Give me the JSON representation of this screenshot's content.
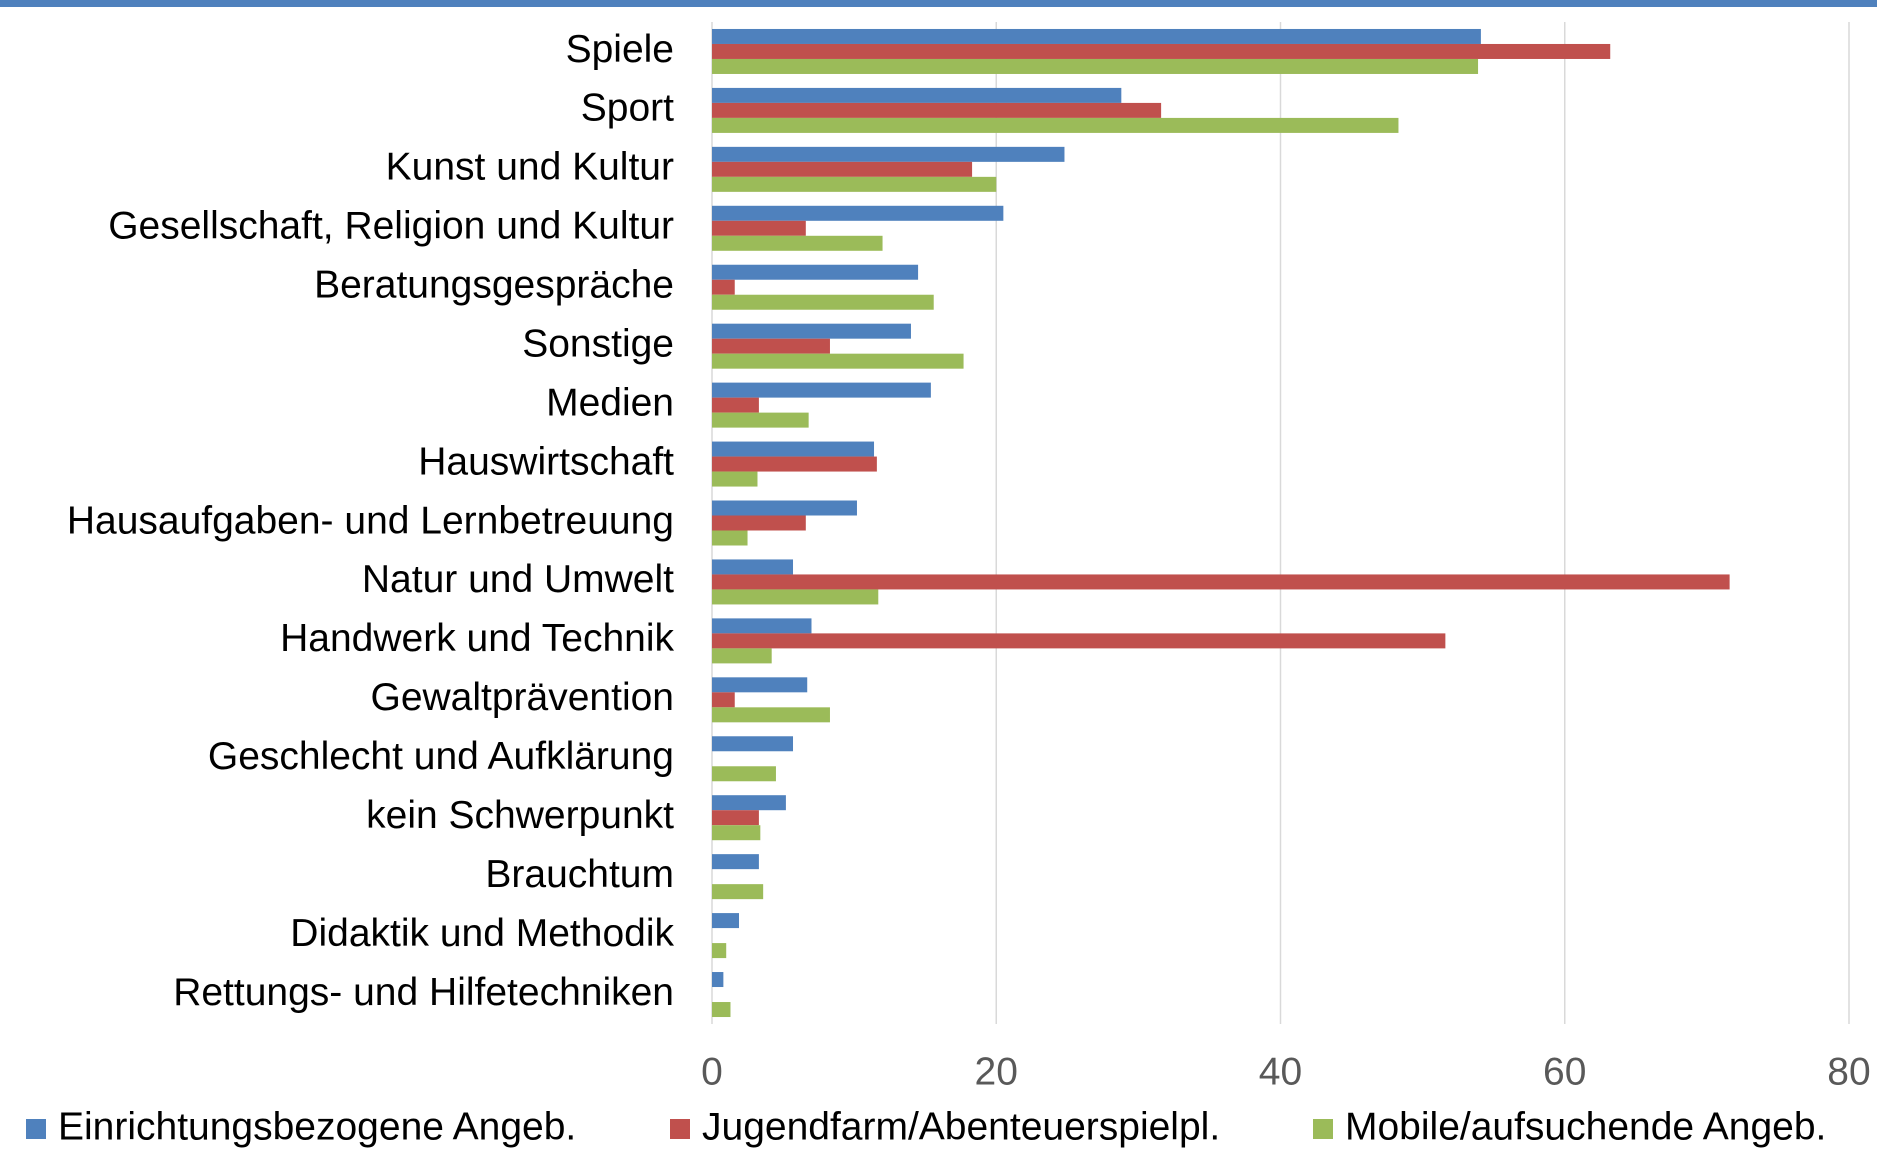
{
  "chart_data": {
    "type": "bar",
    "orientation": "horizontal",
    "categories": [
      "Spiele",
      "Sport",
      "Kunst und Kultur",
      "Gesellschaft, Religion und Kultur",
      "Beratungsgespräche",
      "Sonstige",
      "Medien",
      "Hauswirtschaft",
      "Hausaufgaben- und Lernbetreuung",
      "Natur und Umwelt",
      "Handwerk und Technik",
      "Gewaltprävention",
      "Geschlecht und Aufklärung",
      "kein Schwerpunkt",
      "Brauchtum",
      "Didaktik und Methodik",
      "Rettungs- und Hilfetechniken"
    ],
    "series": [
      {
        "name": "Einrichtungsbezogene Angeb.",
        "color": "#4f81bd",
        "values": [
          54.1,
          28.8,
          24.8,
          20.5,
          14.5,
          14.0,
          15.4,
          11.4,
          10.2,
          5.7,
          7.0,
          6.7,
          5.7,
          5.2,
          3.3,
          1.9,
          0.8
        ]
      },
      {
        "name": "Jugendfarm/Abenteuerspielpl.",
        "color": "#c0504d",
        "values": [
          63.2,
          31.6,
          18.3,
          6.6,
          1.6,
          8.3,
          3.3,
          11.6,
          6.6,
          71.6,
          51.6,
          1.6,
          0,
          3.3,
          0,
          0,
          0
        ]
      },
      {
        "name": "Mobile/aufsuchende Angeb.",
        "color": "#9bbb59",
        "values": [
          53.9,
          48.3,
          20.0,
          12.0,
          15.6,
          17.7,
          6.8,
          3.2,
          2.5,
          11.7,
          4.2,
          8.3,
          4.5,
          3.4,
          3.6,
          1.0,
          1.3
        ]
      }
    ],
    "xlim": [
      0,
      80
    ],
    "xticks": [
      0,
      20,
      40,
      60,
      80
    ],
    "grid": true,
    "legend": "bottom"
  }
}
